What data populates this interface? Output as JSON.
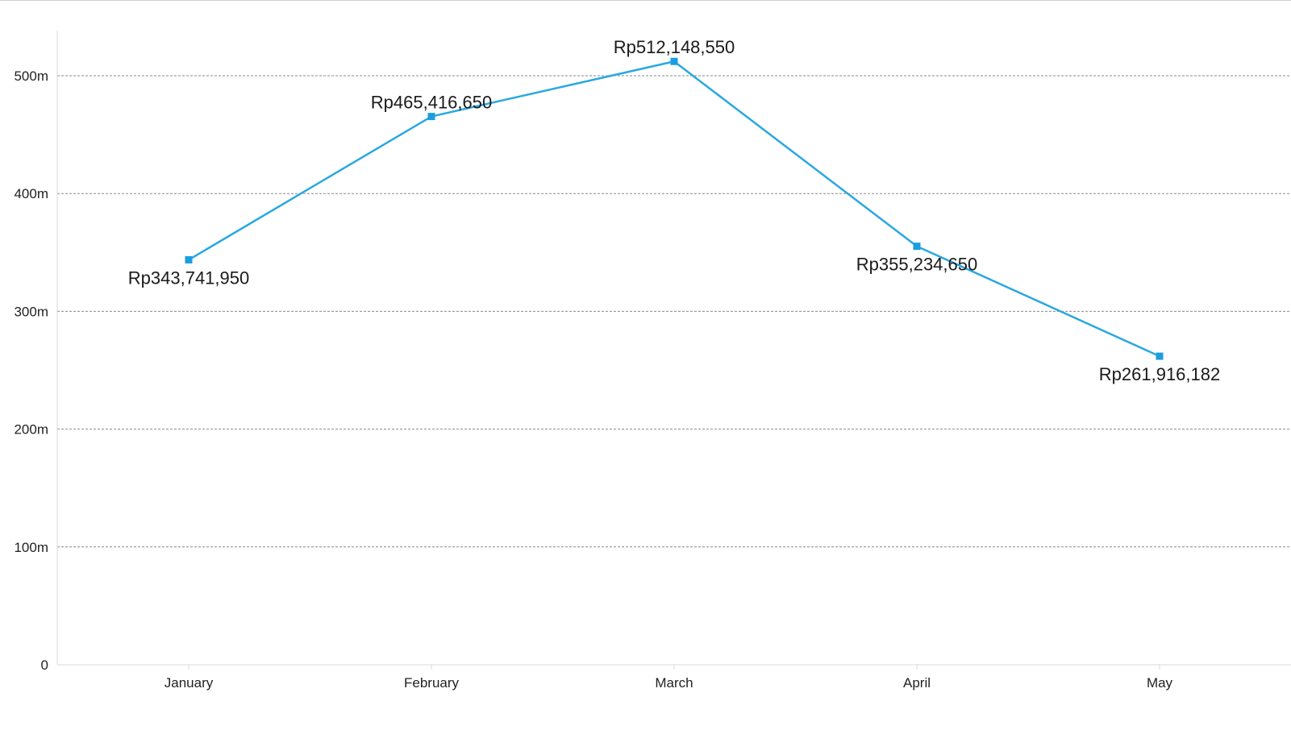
{
  "chart_data": {
    "type": "line",
    "categories": [
      "January",
      "February",
      "March",
      "April",
      "May"
    ],
    "values": [
      343741950,
      465416650,
      512148550,
      355234650,
      261916182
    ],
    "data_labels": [
      "Rp343,741,950",
      "Rp465,416,650",
      "Rp512,148,550",
      "Rp355,234,650",
      "Rp261,916,182"
    ],
    "y_ticks": [
      {
        "value": 0,
        "label": "0"
      },
      {
        "value": 100000000,
        "label": "100m"
      },
      {
        "value": 200000000,
        "label": "200m"
      },
      {
        "value": 300000000,
        "label": "300m"
      },
      {
        "value": 400000000,
        "label": "400m"
      },
      {
        "value": 500000000,
        "label": "500m"
      }
    ],
    "ylim": [
      0,
      540000000
    ],
    "grid": true,
    "legend": "none",
    "title": "",
    "xlabel": "",
    "ylabel": "",
    "colors": {
      "series": "#29a8e0",
      "marker": "#1a9ee0",
      "grid": "#8a8a8a",
      "axis": "#d9d9d9"
    }
  }
}
